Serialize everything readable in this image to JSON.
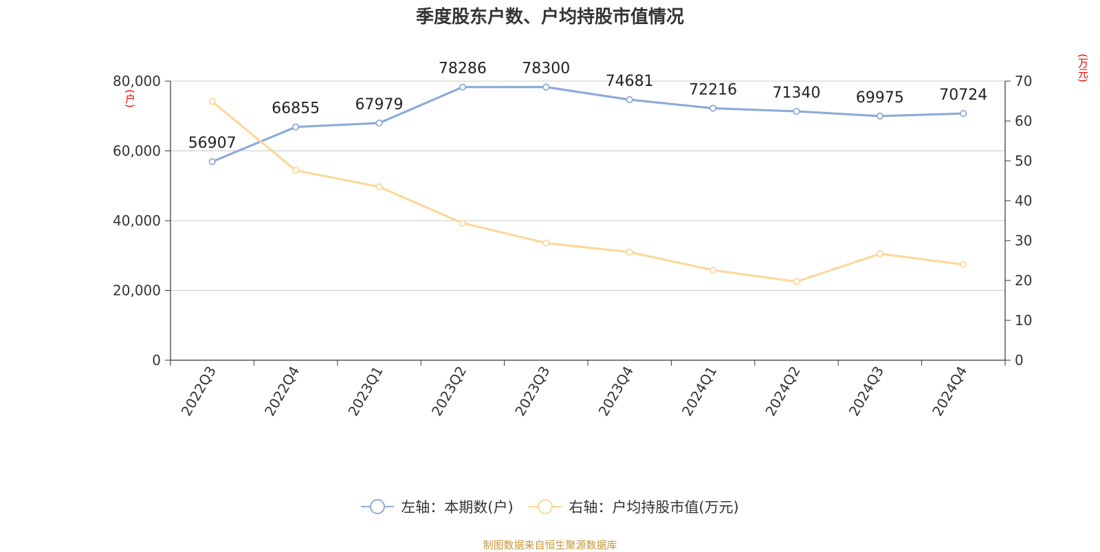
{
  "chart_data": {
    "type": "line",
    "title": "季度股东户数、户均持股市值情况",
    "categories": [
      "2022Q3",
      "2022Q4",
      "2023Q1",
      "2023Q2",
      "2023Q3",
      "2023Q4",
      "2024Q1",
      "2024Q2",
      "2024Q3",
      "2024Q4"
    ],
    "y_left": {
      "unit": "(户)",
      "ylim": [
        0,
        80000
      ],
      "ticks": [
        "0",
        "20,000",
        "40,000",
        "60,000",
        "80,000"
      ]
    },
    "y_right": {
      "unit": "(万元)",
      "ylim": [
        0,
        70
      ],
      "ticks": [
        "0",
        "10",
        "20",
        "30",
        "40",
        "50",
        "60",
        "70"
      ]
    },
    "series": [
      {
        "name": "左轴：本期数(户)",
        "axis": "left",
        "color": "#8eaad8",
        "values": [
          56907,
          66855,
          67979,
          78286,
          78300,
          74681,
          72216,
          71340,
          69975,
          70724
        ],
        "labels": [
          "56907",
          "66855",
          "67979",
          "78286",
          "78300",
          "74681",
          "72216",
          "71340",
          "69975",
          "70724"
        ]
      },
      {
        "name": "右轴：户均持股市值(万元)",
        "axis": "right",
        "color": "#fbd89a",
        "values": [
          64.9,
          47.6,
          43.5,
          34.4,
          29.4,
          27.1,
          22.6,
          19.7,
          26.7,
          24.0
        ]
      }
    ],
    "grid": true,
    "legend": "bottom"
  },
  "source": "制图数据来自恒生聚源数据库"
}
